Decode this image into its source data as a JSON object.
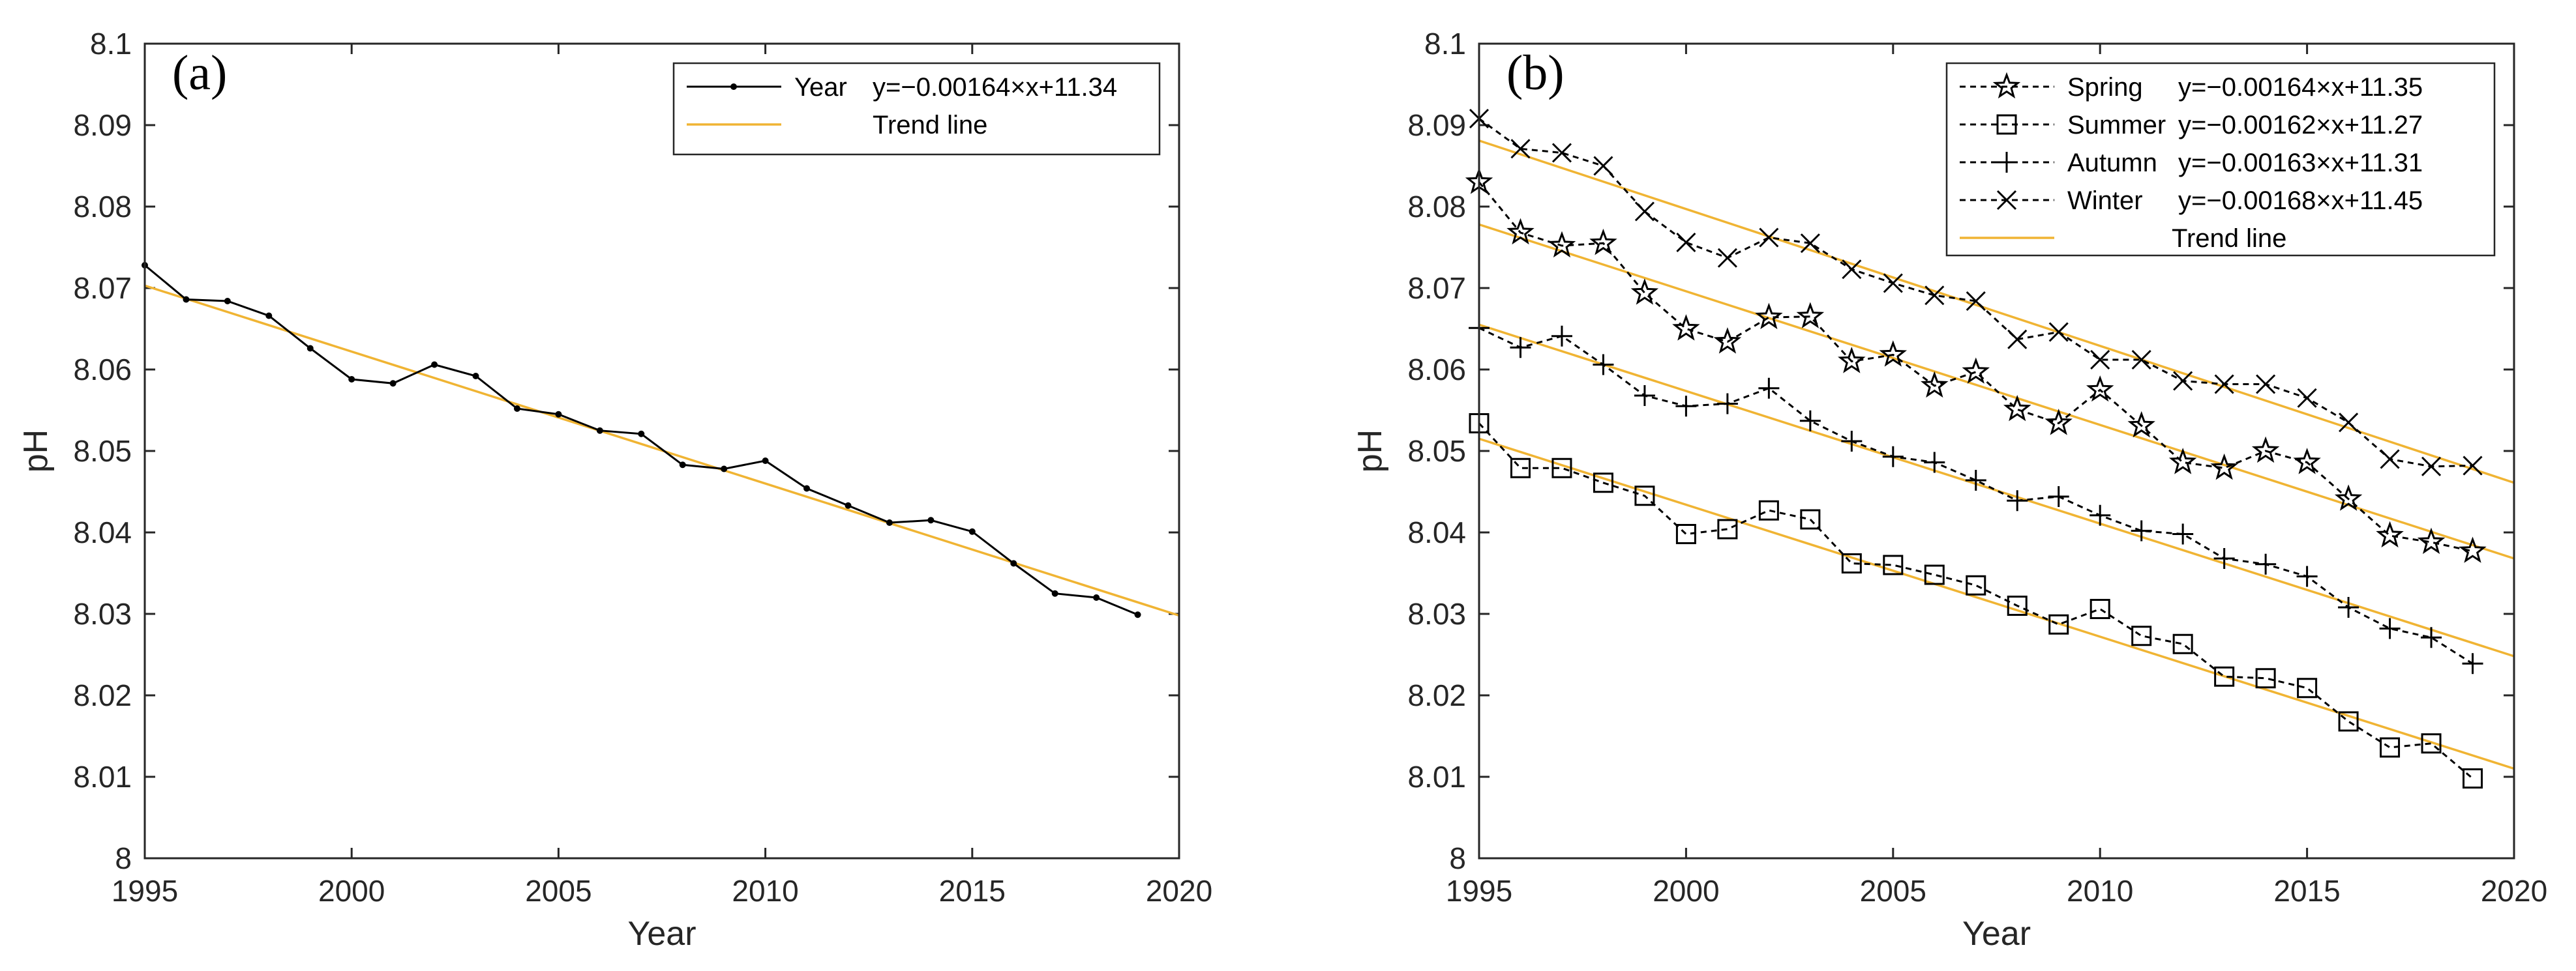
{
  "chart_data": [
    {
      "type": "line",
      "panel_label": "(a)",
      "xlabel": "Year",
      "ylabel": "pH",
      "xlim": [
        1995,
        2020
      ],
      "ylim": [
        8,
        8.1
      ],
      "xticks": [
        "1995",
        "2000",
        "2005",
        "2010",
        "2015",
        "2020"
      ],
      "yticks": [
        "8",
        "8.01",
        "8.02",
        "8.03",
        "8.04",
        "8.05",
        "8.06",
        "8.07",
        "8.08",
        "8.09",
        "8.1"
      ],
      "legend_position": "top-right",
      "x": [
        1995,
        1996,
        1997,
        1998,
        1999,
        2000,
        2001,
        2002,
        2003,
        2004,
        2005,
        2006,
        2007,
        2008,
        2009,
        2010,
        2011,
        2012,
        2013,
        2014,
        2015,
        2016,
        2017,
        2018,
        2019
      ],
      "series": [
        {
          "name": "Year",
          "equation": "y=−0.00164×x+11.34",
          "marker": "dot",
          "color": "#000000",
          "values": [
            8.0728,
            8.0686,
            8.0684,
            8.0666,
            8.0626,
            8.0588,
            8.0583,
            8.0606,
            8.0592,
            8.0552,
            8.0545,
            8.0525,
            8.0521,
            8.0483,
            8.0478,
            8.0488,
            8.0454,
            8.0433,
            8.0412,
            8.0415,
            8.0401,
            8.0362,
            8.0325,
            8.032,
            8.0299
          ]
        }
      ],
      "trend_lines": [
        {
          "name": "Trend line",
          "color": "#f0b433",
          "points": [
            [
              1995,
              8.0703
            ],
            [
              2020,
              8.0298
            ]
          ]
        }
      ]
    },
    {
      "type": "line",
      "panel_label": "(b)",
      "xlabel": "Year",
      "ylabel": "pH",
      "xlim": [
        1995,
        2020
      ],
      "ylim": [
        8,
        8.1
      ],
      "xticks": [
        "1995",
        "2000",
        "2005",
        "2010",
        "2015",
        "2020"
      ],
      "yticks": [
        "8",
        "8.01",
        "8.02",
        "8.03",
        "8.04",
        "8.05",
        "8.06",
        "8.07",
        "8.08",
        "8.09",
        "8.1"
      ],
      "legend_position": "top-right",
      "x": [
        1995,
        1996,
        1997,
        1998,
        1999,
        2000,
        2001,
        2002,
        2003,
        2004,
        2005,
        2006,
        2007,
        2008,
        2009,
        2010,
        2011,
        2012,
        2013,
        2014,
        2015,
        2016,
        2017,
        2018,
        2019
      ],
      "series": [
        {
          "name": "Spring",
          "equation": "y=−0.00164×x+11.35",
          "marker": "star",
          "color": "#000000",
          "values": [
            8.083,
            8.0768,
            8.0752,
            8.0755,
            8.0694,
            8.065,
            8.0634,
            8.0664,
            8.0665,
            8.061,
            8.0618,
            8.058,
            8.0597,
            8.0551,
            8.0534,
            8.0575,
            8.0531,
            8.0486,
            8.0479,
            8.05,
            8.0486,
            8.0441,
            8.0396,
            8.0388,
            8.0377
          ]
        },
        {
          "name": "Summer",
          "equation": "y=−0.00162×x+11.27",
          "marker": "square",
          "color": "#000000",
          "values": [
            8.0534,
            8.0479,
            8.0479,
            8.0461,
            8.0445,
            8.0398,
            8.0404,
            8.0427,
            8.0416,
            8.0362,
            8.036,
            8.0348,
            8.0335,
            8.031,
            8.0287,
            8.0306,
            8.0273,
            8.0263,
            8.0223,
            8.0221,
            8.0209,
            8.0168,
            8.0136,
            8.0141,
            8.0098
          ]
        },
        {
          "name": "Autumn",
          "equation": "y=−0.00163×x+11.31",
          "marker": "plus",
          "color": "#000000",
          "values": [
            8.0651,
            8.0627,
            8.0641,
            8.0606,
            8.0568,
            8.0555,
            8.0558,
            8.0577,
            8.0537,
            8.0512,
            8.0493,
            8.0486,
            8.0464,
            8.0439,
            8.0444,
            8.0421,
            8.0402,
            8.0398,
            8.0368,
            8.0361,
            8.0346,
            8.0308,
            8.0282,
            8.0271,
            8.0239
          ]
        },
        {
          "name": "Winter",
          "equation": "y=−0.00168×x+11.45",
          "marker": "x",
          "color": "#000000",
          "values": [
            8.0908,
            8.0871,
            8.0866,
            8.085,
            8.0794,
            8.0756,
            8.0737,
            8.0762,
            8.0755,
            8.0723,
            8.0706,
            8.0691,
            8.0684,
            8.0637,
            8.0646,
            8.0612,
            8.0612,
            8.0586,
            8.0582,
            8.0582,
            8.0565,
            8.0535,
            8.049,
            8.0481,
            8.0482
          ]
        }
      ],
      "trend_lines": [
        {
          "name": "Trend line",
          "color": "#f0b433",
          "points": [
            [
              1995,
              8.0778
            ],
            [
              2020,
              8.0368
            ]
          ]
        },
        {
          "color": "#f0b433",
          "points": [
            [
              1995,
              8.0515
            ],
            [
              2020,
              8.011
            ]
          ]
        },
        {
          "color": "#f0b433",
          "points": [
            [
              1995,
              8.0655
            ],
            [
              2020,
              8.0248
            ]
          ]
        },
        {
          "color": "#f0b433",
          "points": [
            [
              1995,
              8.0881
            ],
            [
              2020,
              8.0461
            ]
          ]
        }
      ]
    }
  ]
}
